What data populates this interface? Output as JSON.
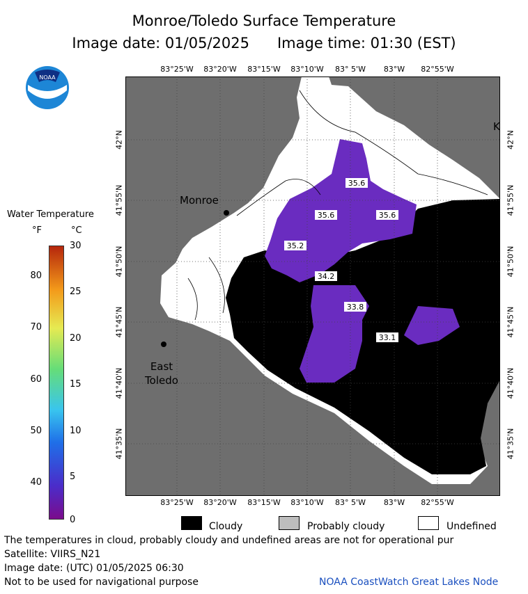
{
  "header": {
    "title": "Monroe/Toledo Surface Temperature",
    "image_date": "Image date: 01/05/2025",
    "image_time": "Image time: 01:30 (EST)"
  },
  "logo": {
    "text": "NOAA",
    "icon": "noaa-logo-icon"
  },
  "legend": {
    "title": "Water Temperature",
    "unit_f": "°F",
    "unit_c": "°C",
    "f_ticks": [
      "80",
      "70",
      "60",
      "50",
      "40"
    ],
    "c_ticks": [
      "30",
      "25",
      "20",
      "15",
      "10",
      "5",
      "0"
    ],
    "cloudy": "Cloudy",
    "probably_cloudy": "Probably cloudy",
    "undefined": "Undefined"
  },
  "axes": {
    "lon_top": [
      "83°25'W",
      "83°20'W",
      "83°15'W",
      "83°10'W",
      "83° 5'W",
      "83°W",
      "82°55'W"
    ],
    "lon_bottom": [
      "83°25'W",
      "83°20'W",
      "83°15'W",
      "83°10'W",
      "83° 5'W",
      "83°W",
      "82°55'W"
    ],
    "lat": [
      "42°N",
      "41°55'N",
      "41°50'N",
      "41°45'N",
      "41°40'N",
      "41°35'N"
    ]
  },
  "places": {
    "monroe": "Monroe",
    "east": "East",
    "toledo": "Toledo",
    "k": "K"
  },
  "readings": [
    "35.6",
    "35.6",
    "35.6",
    "35.2",
    "34.2",
    "33.8",
    "33.1"
  ],
  "colors": {
    "land": "#6e6e6e",
    "cloud": "#000000",
    "water_cold": "#6a2cc0",
    "undefined": "#ffffff"
  },
  "footer": {
    "line1": "The temperatures in cloud, probably cloudy and undefined areas are not for operational pur",
    "line2": "Satellite: VIIRS_N21",
    "line3": "Image date: (UTC) 01/05/2025  06:30",
    "line4": "Not to be used for navigational purpose",
    "credit": "NOAA CoastWatch Great Lakes Node"
  }
}
